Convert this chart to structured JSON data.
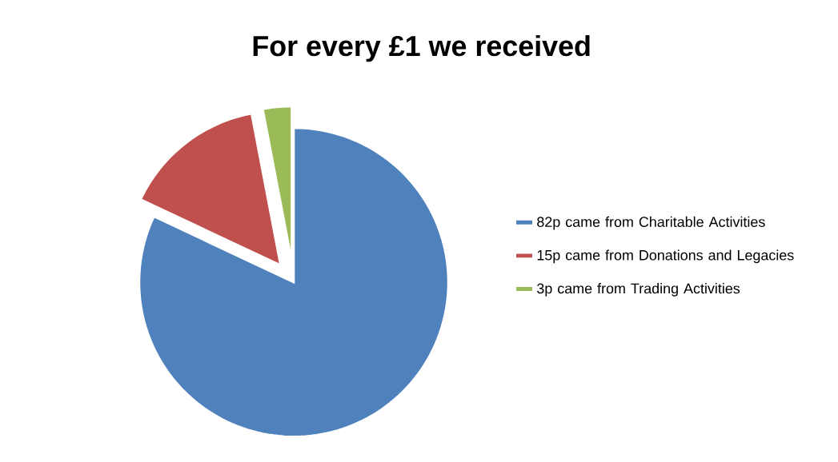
{
  "chart_data": {
    "type": "pie",
    "title": "For every £1 we received",
    "categories": [
      "82p came from Charitable Activities",
      "15p came from Donations and Legacies",
      "3p came from Trading Activities"
    ],
    "values": [
      82,
      15,
      3
    ],
    "colors": [
      "#4f81bd",
      "#c0504d",
      "#9bbb59"
    ],
    "legend": "right"
  }
}
